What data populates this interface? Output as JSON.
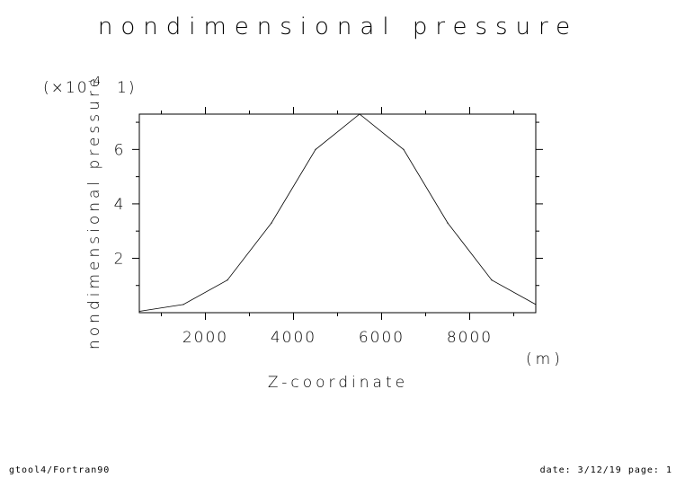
{
  "chart_data": {
    "type": "line",
    "title": "nondimensional pressure",
    "xlabel": "Z-coordinate",
    "xunit": "(m)",
    "ylabel": "nondimensional pressure",
    "yscale_label": "(×10",
    "yscale_exp": "-4",
    "yscale_unit": "1)",
    "xlim": [
      500,
      9500
    ],
    "ylim": [
      0,
      7.3
    ],
    "xticks": [
      2000,
      4000,
      6000,
      8000
    ],
    "xtick_labels": [
      "2000",
      "4000",
      "6000",
      "8000"
    ],
    "yticks": [
      2,
      4,
      6
    ],
    "ytick_labels": [
      "2",
      "4",
      "6"
    ],
    "x": [
      500,
      1500,
      2500,
      3500,
      4500,
      5500,
      6500,
      7500,
      8500,
      9500
    ],
    "y": [
      0.05,
      0.3,
      1.2,
      3.3,
      6.0,
      7.3,
      6.0,
      3.3,
      1.2,
      0.3
    ],
    "grid": false
  },
  "footer": {
    "left": "gtool4/Fortran90",
    "right": "date: 3/12/19 page: 1"
  }
}
